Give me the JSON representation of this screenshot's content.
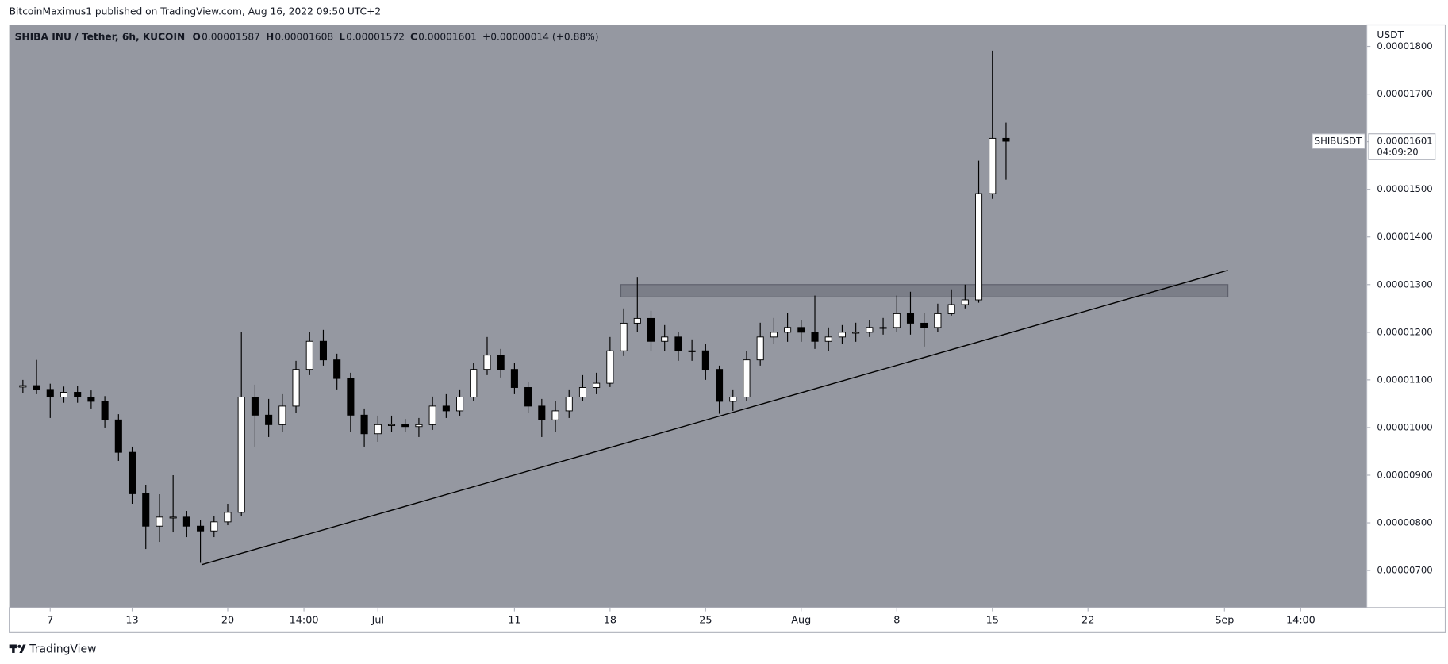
{
  "header": {
    "publisher": "BitcoinMaximus1 published on TradingView.com, Aug 16, 2022 09:50 UTC+2"
  },
  "footer": {
    "brand": "TradingView"
  },
  "chart_data": {
    "type": "candlestick",
    "symbol": "SHIBA INU / Tether, 6h, KUCOIN",
    "ohlc_legend": [
      {
        "label": "O",
        "value": "0.00001587"
      },
      {
        "label": "H",
        "value": "0.00001608"
      },
      {
        "label": "L",
        "value": "0.00001572"
      },
      {
        "label": "C",
        "value": "0.00001601"
      }
    ],
    "change": "+0.00000014 (+0.88%)",
    "y_axis_unit": "USDT",
    "price_tag": {
      "ticker": "SHIBUSDT",
      "price": "0.00001601",
      "countdown": "04:09:20"
    },
    "up_color": "#ffffff",
    "down_color": "#000000",
    "wick_color": "#000000",
    "background": "#9598a1",
    "x": [
      "2022-06-05",
      "2022-06-06",
      "2022-06-07",
      "2022-06-08",
      "2022-06-09",
      "2022-06-10",
      "2022-06-11",
      "2022-06-12",
      "2022-06-13",
      "2022-06-14",
      "2022-06-15",
      "2022-06-16",
      "2022-06-17",
      "2022-06-18",
      "2022-06-19",
      "2022-06-20",
      "2022-06-21",
      "2022-06-22",
      "2022-06-23",
      "2022-06-24",
      "2022-06-25",
      "2022-06-26",
      "2022-06-27",
      "2022-06-28",
      "2022-06-29",
      "2022-06-30",
      "2022-07-01",
      "2022-07-02",
      "2022-07-03",
      "2022-07-04",
      "2022-07-05",
      "2022-07-06",
      "2022-07-07",
      "2022-07-08",
      "2022-07-09",
      "2022-07-10",
      "2022-07-11",
      "2022-07-12",
      "2022-07-13",
      "2022-07-14",
      "2022-07-15",
      "2022-07-16",
      "2022-07-17",
      "2022-07-18",
      "2022-07-19",
      "2022-07-20",
      "2022-07-21",
      "2022-07-22",
      "2022-07-23",
      "2022-07-24",
      "2022-07-25",
      "2022-07-26",
      "2022-07-27",
      "2022-07-28",
      "2022-07-29",
      "2022-07-30",
      "2022-07-31",
      "2022-08-01",
      "2022-08-02",
      "2022-08-03",
      "2022-08-04",
      "2022-08-05",
      "2022-08-06",
      "2022-08-07",
      "2022-08-08",
      "2022-08-09",
      "2022-08-10",
      "2022-08-11",
      "2022-08-12",
      "2022-08-13",
      "2022-08-14",
      "2022-08-15",
      "2022-08-16"
    ],
    "open": [
      1.085e-05,
      1.088e-05,
      1.08e-05,
      1.064e-05,
      1.074e-05,
      1.064e-05,
      1.055e-05,
      1.016e-05,
      9.48e-06,
      8.61e-06,
      7.93e-06,
      8.12e-06,
      8.12e-06,
      7.93e-06,
      7.83e-06,
      8.02e-06,
      8.22e-06,
      1.064e-05,
      1.026e-05,
      1.006e-05,
      1.045e-05,
      1.122e-05,
      1.181e-05,
      1.142e-05,
      1.103e-05,
      1.026e-05,
      9.87e-06,
      1.006e-05,
      1.006e-05,
      1.002e-05,
      1.006e-05,
      1.045e-05,
      1.035e-05,
      1.064e-05,
      1.122e-05,
      1.152e-05,
      1.122e-05,
      1.084e-05,
      1.045e-05,
      1.016e-05,
      1.035e-05,
      1.064e-05,
      1.084e-05,
      1.093e-05,
      1.161e-05,
      1.219e-05,
      1.229e-05,
      1.181e-05,
      1.19e-05,
      1.161e-05,
      1.161e-05,
      1.122e-05,
      1.055e-05,
      1.064e-05,
      1.142e-05,
      1.19e-05,
      1.2e-05,
      1.21e-05,
      1.2e-05,
      1.181e-05,
      1.19e-05,
      1.2e-05,
      1.2e-05,
      1.21e-05,
      1.21e-05,
      1.239e-05,
      1.219e-05,
      1.21e-05,
      1.239e-05,
      1.258e-05,
      1.268e-05,
      1.491e-05,
      1.607e-05
    ],
    "high": [
      1.1e-05,
      1.142e-05,
      1.092e-05,
      1.086e-05,
      1.088e-05,
      1.078e-05,
      1.066e-05,
      1.028e-05,
      9.6e-06,
      8.8e-06,
      8.6e-06,
      9e-06,
      8.25e-06,
      8.05e-06,
      8.15e-06,
      8.4e-06,
      1.2e-05,
      1.09e-05,
      1.06e-05,
      1.07e-05,
      1.14e-05,
      1.2e-05,
      1.205e-05,
      1.155e-05,
      1.115e-05,
      1.04e-05,
      1.025e-05,
      1.025e-05,
      1.018e-05,
      1.02e-05,
      1.065e-05,
      1.07e-05,
      1.08e-05,
      1.135e-05,
      1.19e-05,
      1.165e-05,
      1.135e-05,
      1.095e-05,
      1.06e-05,
      1.055e-05,
      1.08e-05,
      1.11e-05,
      1.115e-05,
      1.19e-05,
      1.25e-05,
      1.316e-05,
      1.245e-05,
      1.215e-05,
      1.2e-05,
      1.185e-05,
      1.175e-05,
      1.13e-05,
      1.08e-05,
      1.16e-05,
      1.22e-05,
      1.23e-05,
      1.24e-05,
      1.225e-05,
      1.277e-05,
      1.21e-05,
      1.215e-05,
      1.22e-05,
      1.225e-05,
      1.23e-05,
      1.277e-05,
      1.285e-05,
      1.24e-05,
      1.26e-05,
      1.29e-05,
      1.3e-05,
      1.56e-05,
      1.791e-05,
      1.64e-05
    ],
    "low": [
      1.073e-05,
      1.07e-05,
      1.02e-05,
      1.052e-05,
      1.052e-05,
      1.04e-05,
      1e-05,
      9.3e-06,
      8.4e-06,
      7.45e-06,
      7.6e-06,
      7.8e-06,
      7.7e-06,
      7.16e-06,
      7.7e-06,
      7.95e-06,
      8.15e-06,
      9.6e-06,
      9.8e-06,
      9.9e-06,
      1.03e-05,
      1.11e-05,
      1.13e-05,
      1.08e-05,
      9.9e-06,
      9.6e-06,
      9.7e-06,
      9.9e-06,
      9.9e-06,
      9.8e-06,
      9.95e-06,
      1.02e-05,
      1.025e-05,
      1.055e-05,
      1.11e-05,
      1.105e-05,
      1.07e-05,
      1.03e-05,
      9.8e-06,
      9.9e-06,
      1.02e-05,
      1.055e-05,
      1.07e-05,
      1.085e-05,
      1.15e-05,
      1.2e-05,
      1.16e-05,
      1.16e-05,
      1.14e-05,
      1.14e-05,
      1.1e-05,
      1.029e-05,
      1.035e-05,
      1.055e-05,
      1.13e-05,
      1.175e-05,
      1.18e-05,
      1.18e-05,
      1.165e-05,
      1.16e-05,
      1.175e-05,
      1.18e-05,
      1.19e-05,
      1.195e-05,
      1.2e-05,
      1.195e-05,
      1.17e-05,
      1.2e-05,
      1.235e-05,
      1.25e-05,
      1.262e-05,
      1.48e-05,
      1.52e-05
    ],
    "close": [
      1.088e-05,
      1.08e-05,
      1.064e-05,
      1.074e-05,
      1.064e-05,
      1.055e-05,
      1.016e-05,
      9.48e-06,
      8.61e-06,
      7.93e-06,
      8.12e-06,
      8.12e-06,
      7.93e-06,
      7.83e-06,
      8.02e-06,
      8.22e-06,
      1.064e-05,
      1.026e-05,
      1.006e-05,
      1.045e-05,
      1.122e-05,
      1.181e-05,
      1.142e-05,
      1.103e-05,
      1.026e-05,
      9.87e-06,
      1.006e-05,
      1.006e-05,
      1.002e-05,
      1.006e-05,
      1.045e-05,
      1.035e-05,
      1.064e-05,
      1.122e-05,
      1.152e-05,
      1.122e-05,
      1.084e-05,
      1.045e-05,
      1.016e-05,
      1.035e-05,
      1.064e-05,
      1.084e-05,
      1.093e-05,
      1.161e-05,
      1.219e-05,
      1.229e-05,
      1.181e-05,
      1.19e-05,
      1.161e-05,
      1.161e-05,
      1.122e-05,
      1.055e-05,
      1.064e-05,
      1.142e-05,
      1.19e-05,
      1.2e-05,
      1.21e-05,
      1.2e-05,
      1.181e-05,
      1.19e-05,
      1.2e-05,
      1.2e-05,
      1.21e-05,
      1.21e-05,
      1.239e-05,
      1.219e-05,
      1.21e-05,
      1.239e-05,
      1.258e-05,
      1.268e-05,
      1.491e-05,
      1.607e-05,
      1.601e-05
    ],
    "xlim": [
      "2022-06-04T00:00",
      "2022-09-11T10:00"
    ],
    "xticks": [
      {
        "value": "2022-06-07T00:00",
        "label": "7"
      },
      {
        "value": "2022-06-13T00:00",
        "label": "13"
      },
      {
        "value": "2022-06-20T00:00",
        "label": "20"
      },
      {
        "value": "2022-06-25T14:00",
        "label": "14:00"
      },
      {
        "value": "2022-07-01T00:00",
        "label": "Jul"
      },
      {
        "value": "2022-07-11T00:00",
        "label": "11"
      },
      {
        "value": "2022-07-18T00:00",
        "label": "18"
      },
      {
        "value": "2022-07-25T00:00",
        "label": "25"
      },
      {
        "value": "2022-08-01T00:00",
        "label": "Aug"
      },
      {
        "value": "2022-08-08T00:00",
        "label": "8"
      },
      {
        "value": "2022-08-15T00:00",
        "label": "15"
      },
      {
        "value": "2022-08-22T00:00",
        "label": "22"
      },
      {
        "value": "2022-09-01T00:00",
        "label": "Sep"
      },
      {
        "value": "2022-09-06T14:00",
        "label": "14:00"
      }
    ],
    "ylim": [
      6.22e-06,
      1.845e-05
    ],
    "yticks": [
      {
        "value": 7e-06,
        "label": "0.00000700"
      },
      {
        "value": 8e-06,
        "label": "0.00000800"
      },
      {
        "value": 9e-06,
        "label": "0.00000900"
      },
      {
        "value": 1e-05,
        "label": "0.00001000"
      },
      {
        "value": 1.1e-05,
        "label": "0.00001100"
      },
      {
        "value": 1.2e-05,
        "label": "0.00001200"
      },
      {
        "value": 1.3e-05,
        "label": "0.00001300"
      },
      {
        "value": 1.4e-05,
        "label": "0.00001400"
      },
      {
        "value": 1.5e-05,
        "label": "0.00001500"
      },
      {
        "value": 1.6e-05,
        "label": "0.00001600"
      },
      {
        "value": 1.7e-05,
        "label": "0.00001700"
      },
      {
        "value": 1.8e-05,
        "label": "0.00001800"
      }
    ],
    "trendline": {
      "x": [
        "2022-06-18T02:00",
        "2022-09-01T06:00"
      ],
      "values": [
        7.12e-06,
        1.33e-05
      ]
    },
    "resistance_zone": {
      "x": [
        "2022-07-18T19:00",
        "2022-09-01T06:00"
      ],
      "values": [
        1.274e-05,
        1.3e-05
      ]
    }
  }
}
